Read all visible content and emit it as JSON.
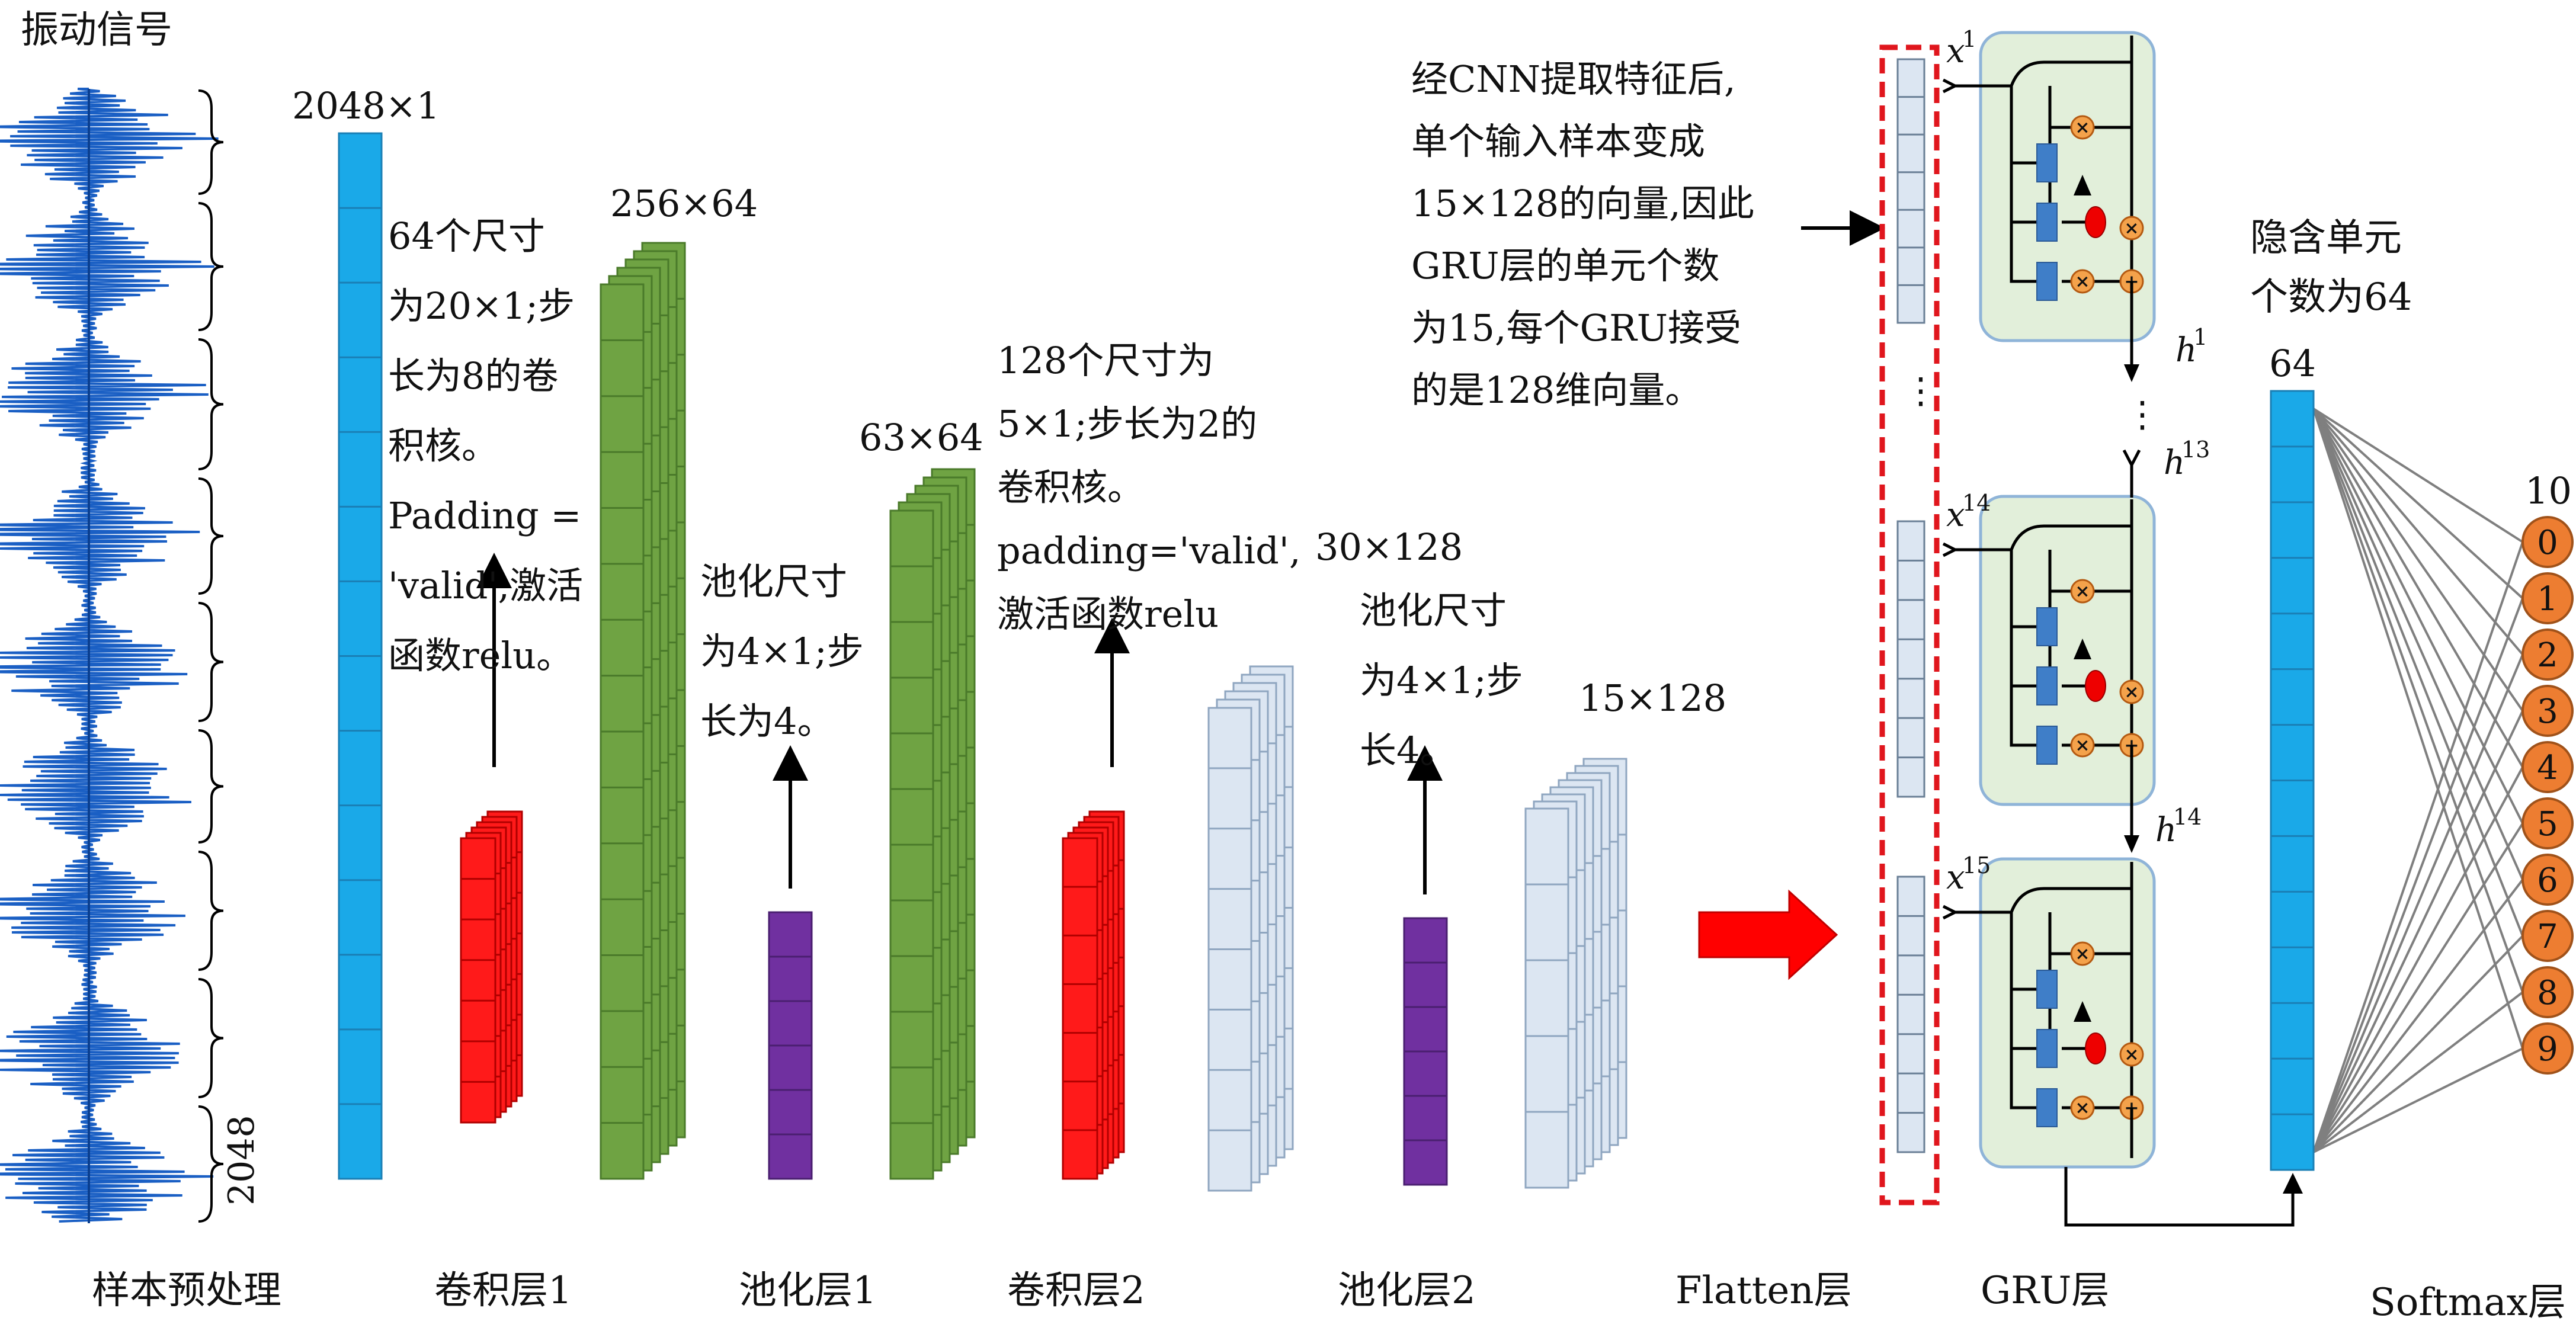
{
  "signal": {
    "title": "振动信号",
    "length_label": "2048",
    "section_label": "样本预处理"
  },
  "layers": {
    "input": {
      "dim": "2048×1"
    },
    "conv1": {
      "dim": "256×64",
      "label": "卷积层1",
      "note": [
        "64个尺寸",
        "为20×1;步",
        "长为8的卷",
        "积核。",
        "Padding =",
        "'valid',激活",
        "函数relu。"
      ]
    },
    "pool1": {
      "dim": "63×64",
      "label": "池化层1",
      "note": [
        "池化尺寸",
        "为4×1;步",
        "长为4。"
      ]
    },
    "conv2": {
      "dim": "30×128",
      "label": "卷积层2",
      "note": [
        "128个尺寸为",
        "5×1;步长为2的",
        "卷积核。",
        "padding='valid',",
        "激活函数relu"
      ]
    },
    "pool2": {
      "dim": "15×128",
      "label": "池化层2",
      "note": [
        "池化尺寸",
        "为4×1;步",
        "长4。"
      ]
    },
    "flatten": {
      "label": "Flatten层"
    },
    "gru": {
      "label": "GRU层",
      "note": [
        "经CNN提取特征后,",
        "单个输入样本变成",
        "15×128的向量,因此",
        "GRU层的单元个数",
        "为15,每个GRU接受",
        "的是128维向量。"
      ],
      "inputs": [
        "x",
        "x",
        "x"
      ],
      "input_sups": [
        "1",
        "14",
        "15"
      ],
      "hidden": [
        "h",
        "h",
        "h"
      ],
      "hidden_sups": [
        "1",
        "13",
        "14"
      ],
      "gate_symbols": {
        "mult": "×",
        "add": "+"
      }
    },
    "hidden": {
      "note": [
        "隐含单元",
        "个数为64"
      ],
      "dim": "64"
    },
    "softmax": {
      "label": "Softmax层",
      "count": "10",
      "outputs": [
        "0",
        "1",
        "2",
        "3",
        "4",
        "5",
        "6",
        "7",
        "8",
        "9"
      ]
    }
  },
  "colors": {
    "signal": "#1a5fc4",
    "input": "#1aa9e8",
    "kernel": "#ff1a1a",
    "conv1": "#6fa343",
    "pool": "#7030a0",
    "conv2": "#dce6f2",
    "flatten_arrow": "#ff0000",
    "gru_bg": "#e2efda",
    "gru_dash": "#e0161d",
    "gate_op": "#f4a24b",
    "gate_box": "#3f7ec8",
    "softmax_node": "#ed7d31"
  }
}
